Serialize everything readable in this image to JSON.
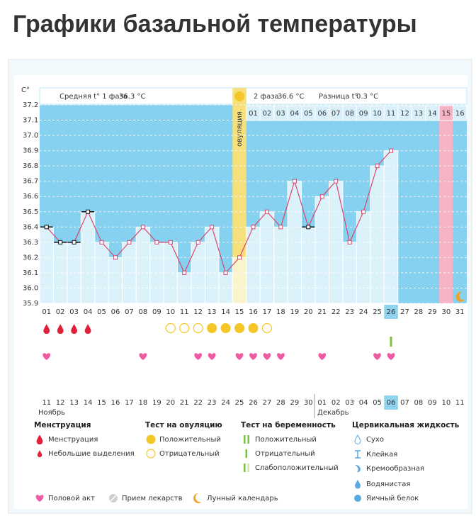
{
  "header": {
    "title": "Графики базальной температуры"
  },
  "chart_data": {
    "type": "line",
    "y_unit": "C°",
    "phase1_label": "Средняя t° 1 фаза",
    "phase1_value": "36.3 °C",
    "phase2_label": "2 фаза",
    "phase2_value": "36.6 °C",
    "diff_label": "Разница t°",
    "diff_value": "0.3 °C",
    "ovulation_label": "овуляция",
    "categories": [
      "01",
      "02",
      "03",
      "04",
      "05",
      "06",
      "07",
      "08",
      "09",
      "10",
      "11",
      "12",
      "13",
      "14",
      "15",
      "16",
      "17",
      "18",
      "19",
      "20",
      "21",
      "22",
      "23",
      "24",
      "25",
      "26",
      "27",
      "28",
      "29",
      "30",
      "31"
    ],
    "values": [
      36.4,
      36.3,
      36.3,
      36.5,
      36.3,
      36.2,
      36.3,
      36.4,
      36.3,
      36.3,
      36.1,
      36.3,
      36.4,
      36.1,
      36.2,
      36.4,
      36.5,
      36.4,
      36.7,
      36.4,
      36.6,
      36.7,
      36.3,
      36.5,
      36.8,
      36.9,
      null,
      null,
      null,
      null,
      null
    ],
    "line_color": "#d9476c",
    "marker_colors": [
      "#111111",
      "#111111",
      "#111111",
      "#111111",
      "#d9476c",
      "#d9476c",
      "#d9476c",
      "#d9476c",
      "#d9476c",
      "#d9476c",
      "#d9476c",
      "#d9476c",
      "#d9476c",
      "#d9476c",
      "#d9476c",
      "#d9476c",
      "#d9476c",
      "#d9476c",
      "#d9476c",
      "#111111",
      "#d9476c",
      "#d9476c",
      "#d9476c",
      "#d9476c",
      "#d9476c",
      "#d9476c",
      null,
      null,
      null,
      null,
      null
    ],
    "ylim": [
      35.9,
      37.2
    ],
    "yticks": [
      35.9,
      {
        "value": 36.0,
        "label": "36.0"
      },
      36.1,
      36.2,
      36.3,
      36.4,
      36.5,
      36.6,
      36.7,
      36.8,
      36.9,
      {
        "value": 37.0,
        "label": "37.0"
      },
      37.1,
      37.2
    ],
    "grid": true,
    "cycle_days": [
      null,
      null,
      null,
      null,
      null,
      null,
      null,
      null,
      null,
      null,
      null,
      null,
      null,
      null,
      null,
      "01",
      "02",
      "03",
      "04",
      "05",
      "06",
      "07",
      "08",
      "09",
      "10",
      "11",
      "12",
      "13",
      "14",
      "15",
      "16"
    ],
    "highlight_category": "26",
    "marked_category": "30",
    "moon_category": "31",
    "events": {
      "menstruation": [
        "01",
        "02",
        "03",
        "04"
      ],
      "ovulation_negative": [
        "10",
        "11",
        "12",
        "17"
      ],
      "ovulation_positive": [
        "13",
        "14",
        "15",
        "16"
      ],
      "pregnancy_positive": [
        "26"
      ],
      "intercourse": [
        "01",
        "08",
        "12",
        "13",
        "15",
        "16",
        "17",
        "18",
        "21",
        "25",
        "26"
      ]
    },
    "calendar": {
      "dates": [
        "11",
        "12",
        "13",
        "14",
        "15",
        "16",
        "17",
        "18",
        "19",
        "20",
        "21",
        "22",
        "23",
        "24",
        "25",
        "26",
        "27",
        "28",
        "29",
        "30",
        "01",
        "02",
        "03",
        "04",
        "05",
        "06",
        "07",
        "08",
        "09",
        "10",
        "11"
      ],
      "colors": [
        "#333",
        "#333",
        "#e0203a",
        "#e0203a",
        "#333",
        "#333",
        "#333",
        "#333",
        "#333",
        "#e0203a",
        "#e0203a",
        "#333",
        "#333",
        "#333",
        "#333",
        "#333",
        "#e0203a",
        "#e0203a",
        "#333",
        "#333",
        "#333",
        "#333",
        "#333",
        "#e0203a",
        "#e0203a",
        "#333",
        "#333",
        "#333",
        "#333",
        "#333",
        "#e0203a"
      ],
      "months": [
        "Ноябрь",
        "Декабрь"
      ],
      "highlight": "06"
    }
  },
  "legend": {
    "sections": [
      {
        "title": "Менструация",
        "items": [
          "Менструация",
          "Небольшие выделения"
        ]
      },
      {
        "title": "Тест на овуляцию",
        "items": [
          "Положительный",
          "Отрицательный"
        ]
      },
      {
        "title": "Тест на беременность",
        "items": [
          "Положительный",
          "Отрицательный",
          "Слабоположительный"
        ]
      },
      {
        "title": "Цервикальная жидкость",
        "items": [
          "Сухо",
          "Клейкая",
          "Кремообразная",
          "Водянистая",
          "Яичный белок"
        ]
      }
    ],
    "bottom": [
      "Половой акт",
      "Прием лекарств",
      "Лунный календарь"
    ]
  }
}
